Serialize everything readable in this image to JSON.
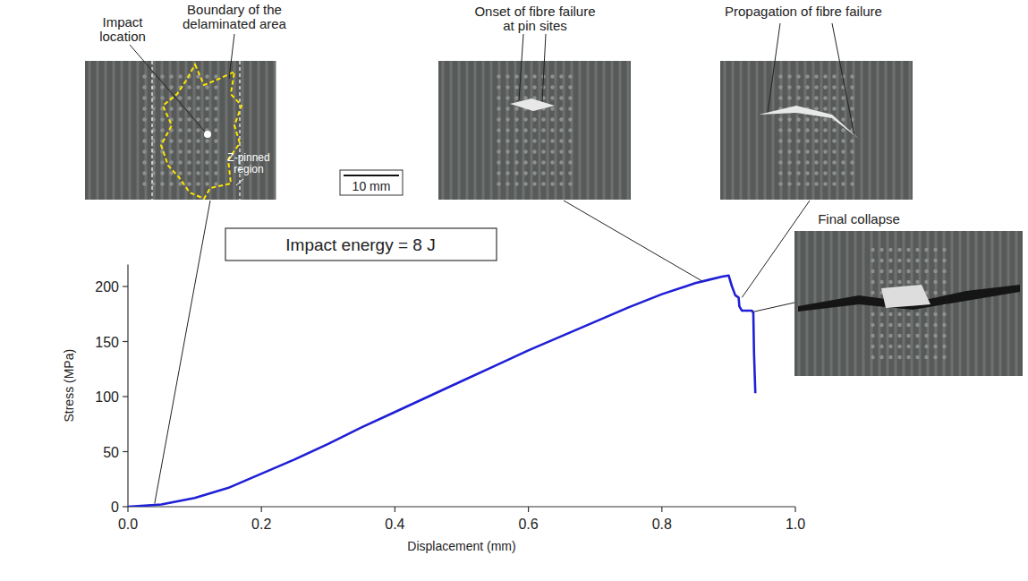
{
  "chart_data": {
    "type": "line",
    "xlabel": "Displacement (mm)",
    "ylabel": "Stress (MPa)",
    "xlim": [
      0,
      1.0
    ],
    "ylim": [
      0,
      220
    ],
    "xticks": [
      {
        "value": 0,
        "label": "0.0"
      },
      {
        "value": 0.2,
        "label": "0.2"
      },
      {
        "value": 0.4,
        "label": "0.4"
      },
      {
        "value": 0.6,
        "label": "0.6"
      },
      {
        "value": 0.8,
        "label": "0.8"
      },
      {
        "value": 1.0,
        "label": "1.0"
      }
    ],
    "yticks": [
      0,
      50,
      100,
      150,
      200
    ],
    "grid": false,
    "color": "#1f1fd6",
    "x": [
      0,
      0.05,
      0.1,
      0.15,
      0.2,
      0.25,
      0.3,
      0.35,
      0.4,
      0.45,
      0.5,
      0.55,
      0.6,
      0.65,
      0.7,
      0.75,
      0.8,
      0.85,
      0.87,
      0.89,
      0.9,
      0.905,
      0.91,
      0.915,
      0.916,
      0.92,
      0.935,
      0.937,
      0.938,
      0.94
    ],
    "values": [
      0,
      2,
      8,
      17,
      30,
      43,
      57,
      72,
      86,
      100,
      114,
      128,
      142,
      155,
      168,
      181,
      193,
      203,
      206,
      209,
      210,
      200,
      192,
      190,
      182,
      178,
      178,
      176,
      140,
      103
    ],
    "annotations": [
      {
        "text": "Impact energy = 8 J"
      }
    ],
    "photos": [
      {
        "x": 0.04,
        "y": 3,
        "labels": [
          "Impact location",
          "Boundary of the delaminated area",
          "Z-pinned region"
        ],
        "scale_bar": "10 mm"
      },
      {
        "title": "Onset of fibre failure at pin sites",
        "x": 0.86,
        "y": 205
      },
      {
        "title": "Propagation of fibre failure",
        "x": 0.92,
        "y": 190
      },
      {
        "title": "Final collapse",
        "x": 0.937,
        "y": 177
      }
    ]
  }
}
